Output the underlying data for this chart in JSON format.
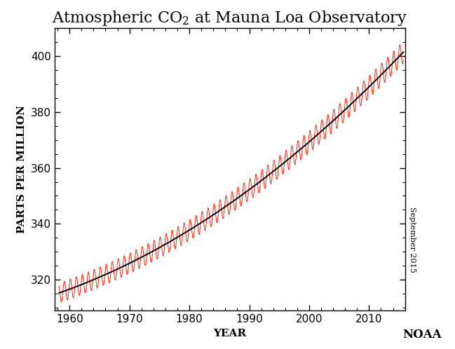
{
  "title_text": "Atmospheric CO",
  "title_subscript": "2",
  "title_suffix": " at Mauna Loa Observatory",
  "xlabel": "YEAR",
  "ylabel": "PARTS PER MILLION",
  "xlim": [
    1957.5,
    2016.0
  ],
  "ylim": [
    309,
    410
  ],
  "xticks": [
    1960,
    1970,
    1980,
    1990,
    2000,
    2010
  ],
  "yticks": [
    320,
    340,
    360,
    380,
    400
  ],
  "red_color": "#FF2200",
  "black_color": "#000000",
  "bg_color": "#FFFFFF",
  "noaa_label": "NOAA",
  "date_label": "September 2015",
  "fig_width": 6.49,
  "fig_height": 4.98,
  "dpi": 100,
  "title_fontsize": 16,
  "axis_label_fontsize": 11,
  "tick_fontsize": 11,
  "noaa_fontsize": 12,
  "date_fontsize": 8
}
